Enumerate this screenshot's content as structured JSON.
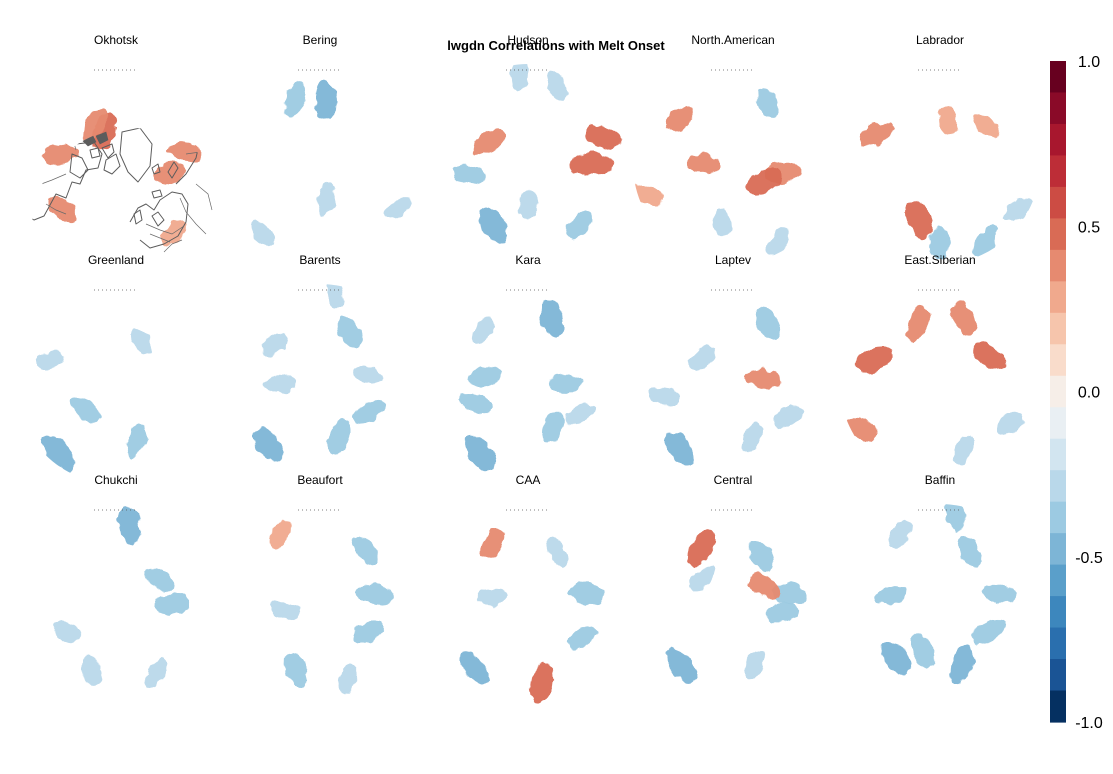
{
  "chart_data": {
    "type": "heatmap",
    "title": "lwgdn Correlations with Melt Onset",
    "projection": "north polar stereographic",
    "layout": "3 rows x 5 columns",
    "panels": [
      {
        "name": "Okhotsk",
        "clusters": [
          [
            -160,
            73,
            0.45
          ],
          [
            -150,
            68,
            0.4
          ],
          [
            -100,
            62,
            0.4
          ],
          [
            80,
            63,
            0.35
          ],
          [
            100,
            55,
            0.35
          ],
          [
            -50,
            55,
            0.35
          ],
          [
            40,
            45,
            0.3
          ]
        ]
      },
      {
        "name": "Bering",
        "clusters": [
          [
            175,
            58,
            -0.45
          ],
          [
            -160,
            55,
            -0.4
          ],
          [
            -40,
            45,
            -0.3
          ],
          [
            60,
            45,
            -0.3
          ],
          [
            10,
            72,
            -0.3
          ]
        ]
      },
      {
        "name": "Hudson",
        "clusters": [
          [
            -175,
            45,
            -0.3
          ],
          [
            90,
            58,
            0.5
          ],
          [
            110,
            50,
            0.45
          ],
          [
            -120,
            68,
            0.4
          ],
          [
            -80,
            60,
            -0.35
          ],
          [
            -30,
            55,
            -0.5
          ],
          [
            0,
            70,
            -0.3
          ],
          [
            40,
            50,
            -0.35
          ],
          [
            160,
            48,
            -0.3
          ]
        ]
      },
      {
        "name": "North.American",
        "clusters": [
          [
            80,
            65,
            0.4
          ],
          [
            60,
            72,
            0.45
          ],
          [
            -90,
            75,
            0.35
          ],
          [
            -130,
            55,
            0.35
          ],
          [
            -70,
            45,
            0.3
          ],
          [
            150,
            55,
            -0.35
          ],
          [
            30,
            45,
            -0.3
          ],
          [
            -10,
            60,
            -0.25
          ]
        ]
      },
      {
        "name": "Labrador",
        "clusters": [
          [
            -115,
            55,
            0.4
          ],
          [
            -20,
            60,
            0.5
          ],
          [
            0,
            50,
            -0.35
          ],
          [
            30,
            45,
            -0.35
          ],
          [
            60,
            45,
            -0.3
          ],
          [
            130,
            60,
            0.3
          ],
          [
            170,
            68,
            0.3
          ]
        ]
      },
      {
        "name": "Greenland",
        "clusters": [
          [
            -50,
            70,
            -0.35
          ],
          [
            20,
            60,
            -0.35
          ],
          [
            -40,
            45,
            -0.5
          ],
          [
            150,
            65,
            -0.25
          ],
          [
            -110,
            55,
            -0.25
          ]
        ]
      },
      {
        "name": "Barents",
        "clusters": [
          [
            -40,
            50,
            -0.45
          ],
          [
            20,
            62,
            -0.4
          ],
          [
            60,
            62,
            -0.35
          ],
          [
            150,
            60,
            -0.35
          ],
          [
            -90,
            70,
            -0.3
          ],
          [
            -130,
            60,
            -0.3
          ],
          [
            100,
            65,
            -0.3
          ],
          [
            170,
            45,
            -0.25
          ]
        ]
      },
      {
        "name": "Kara",
        "clusters": [
          [
            -35,
            48,
            -0.5
          ],
          [
            160,
            55,
            -0.45
          ],
          [
            -100,
            68,
            -0.35
          ],
          [
            90,
            72,
            -0.35
          ],
          [
            30,
            65,
            -0.35
          ],
          [
            -140,
            55,
            -0.3
          ],
          [
            60,
            60,
            -0.3
          ],
          [
            -70,
            62,
            -0.35
          ]
        ]
      },
      {
        "name": "Laptev",
        "clusters": [
          [
            -40,
            48,
            -0.45
          ],
          [
            150,
            55,
            -0.4
          ],
          [
            100,
            75,
            0.4
          ],
          [
            20,
            62,
            -0.3
          ],
          [
            60,
            58,
            -0.3
          ],
          [
            -130,
            70,
            -0.3
          ],
          [
            -80,
            55,
            -0.3
          ]
        ]
      },
      {
        "name": "East.Siberian",
        "clusters": [
          [
            -110,
            55,
            0.45
          ],
          [
            -160,
            58,
            0.4
          ],
          [
            120,
            62,
            0.45
          ],
          [
            160,
            55,
            0.4
          ],
          [
            60,
            50,
            -0.3
          ],
          [
            20,
            55,
            -0.3
          ],
          [
            -60,
            45,
            0.35
          ]
        ]
      },
      {
        "name": "Chukchi",
        "clusters": [
          [
            170,
            50,
            -0.45
          ],
          [
            90,
            62,
            -0.4
          ],
          [
            120,
            65,
            -0.35
          ],
          [
            -60,
            62,
            -0.3
          ],
          [
            -20,
            55,
            -0.3
          ],
          [
            30,
            50,
            -0.3
          ]
        ]
      },
      {
        "name": "Beaufort",
        "clusters": [
          [
            -20,
            55,
            -0.4
          ],
          [
            100,
            62,
            -0.4
          ],
          [
            60,
            62,
            -0.35
          ],
          [
            140,
            55,
            -0.35
          ],
          [
            -80,
            72,
            -0.3
          ],
          [
            -150,
            50,
            0.3
          ],
          [
            20,
            50,
            -0.3
          ]
        ]
      },
      {
        "name": "CAA",
        "clusters": [
          [
            -40,
            48,
            -0.45
          ],
          [
            100,
            60,
            -0.4
          ],
          [
            60,
            58,
            -0.35
          ],
          [
            10,
            50,
            0.45
          ],
          [
            -150,
            55,
            0.35
          ],
          [
            150,
            60,
            -0.3
          ],
          [
            -100,
            72,
            -0.3
          ]
        ]
      },
      {
        "name": "Central",
        "clusters": [
          [
            -40,
            50,
            -0.45
          ],
          [
            100,
            62,
            -0.4
          ],
          [
            80,
            65,
            -0.35
          ],
          [
            150,
            62,
            -0.35
          ],
          [
            -150,
            58,
            0.45
          ],
          [
            -130,
            70,
            -0.3
          ],
          [
            120,
            72,
            0.4
          ],
          [
            20,
            58,
            -0.3
          ]
        ]
      },
      {
        "name": "Baffin",
        "clusters": [
          [
            -40,
            55,
            -0.5
          ],
          [
            -20,
            65,
            -0.4
          ],
          [
            20,
            58,
            -0.45
          ],
          [
            60,
            62,
            -0.4
          ],
          [
            100,
            60,
            -0.35
          ],
          [
            150,
            60,
            -0.35
          ],
          [
            -100,
            65,
            -0.35
          ],
          [
            -150,
            50,
            -0.3
          ],
          [
            170,
            45,
            -0.35
          ]
        ]
      }
    ],
    "colorbar": {
      "range": [
        -1.0,
        1.0
      ],
      "tick_labels": [
        "1.0",
        "0.5",
        "0.0",
        "-0.5",
        "-1.0"
      ],
      "tick_values": [
        1.0,
        0.5,
        0.0,
        -0.5,
        -1.0
      ],
      "colors": [
        "#67001f",
        "#8a0a28",
        "#a8172e",
        "#bd2d37",
        "#cc4c44",
        "#d96b55",
        "#e68a70",
        "#f0a98d",
        "#f6c5ac",
        "#f9dccb",
        "#f6eee8",
        "#e9eff3",
        "#d2e5f0",
        "#b9d8ea",
        "#9ccae2",
        "#7db5d6",
        "#5a9fca",
        "#3d87bd",
        "#2a6fae",
        "#1a5495",
        "#053061"
      ]
    }
  }
}
